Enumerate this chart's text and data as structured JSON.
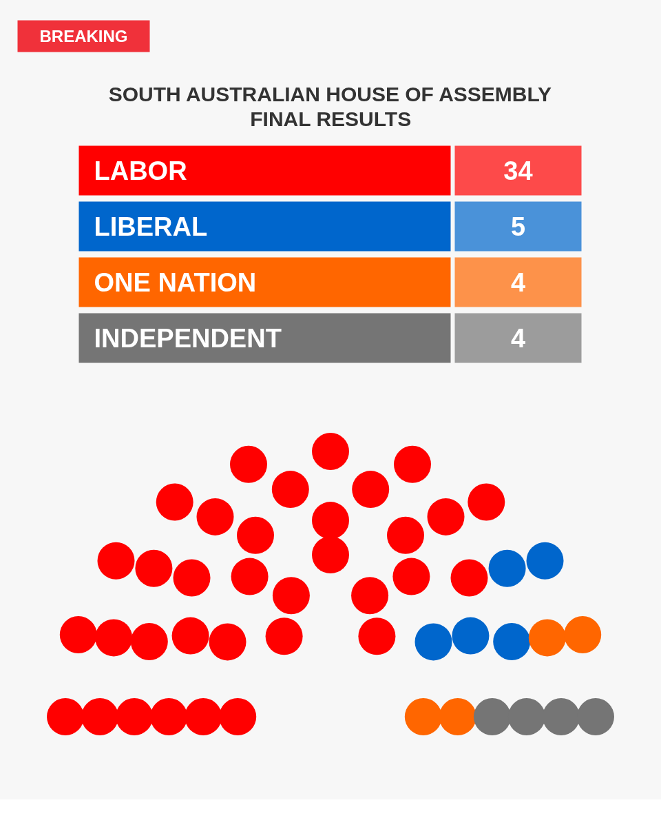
{
  "chart_data": {
    "type": "other",
    "title": "SOUTH AUSTRALIAN HOUSE OF ASSEMBLY FINAL RESULTS",
    "categories": [
      "LABOR",
      "LIBERAL",
      "ONE NATION",
      "INDEPENDENT"
    ],
    "values": [
      34,
      5,
      4,
      4
    ],
    "colors": [
      "#ff0000",
      "#0066cc",
      "#ff6600",
      "#757575"
    ],
    "data_labels": true,
    "annotations": [
      "BREAKING"
    ]
  }
}
